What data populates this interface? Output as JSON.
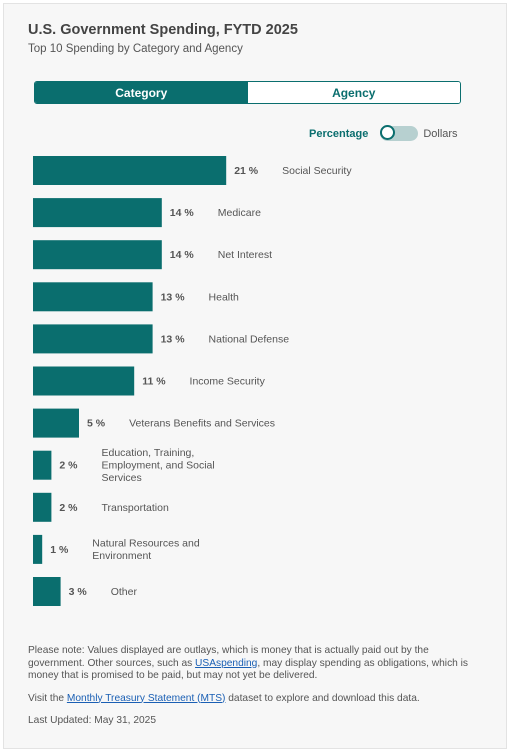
{
  "header": {
    "title": "U.S. Government Spending, FYTD 2025",
    "subtitle": "Top 10 Spending by Category and Agency"
  },
  "tabs": [
    {
      "label": "Category",
      "active": true
    },
    {
      "label": "Agency",
      "active": false
    }
  ],
  "unit_toggle": {
    "left_label": "Percentage",
    "right_label": "Dollars",
    "selected": "Percentage"
  },
  "colors": {
    "accent": "#0a6e6e",
    "bar": "#0a6e6e",
    "link": "#1a5fb4"
  },
  "chart_data": {
    "type": "bar",
    "orientation": "horizontal",
    "categories": [
      "Social Security",
      "Medicare",
      "Net Interest",
      "Health",
      "National Defense",
      "Income Security",
      "Veterans Benefits and Services",
      "Education, Training, Employment, and Social Services",
      "Transportation",
      "Natural Resources and Environment",
      "Other"
    ],
    "values": [
      21,
      14,
      14,
      13,
      13,
      11,
      5,
      2,
      2,
      1,
      3
    ],
    "value_labels": [
      "21 %",
      "14 %",
      "14 %",
      "13 %",
      "13 %",
      "11 %",
      "5 %",
      "2 %",
      "2 %",
      "1 %",
      "3 %"
    ],
    "title": "",
    "xlabel": "",
    "ylabel": ""
  },
  "notes": {
    "note1_before": "Please note: Values displayed are outlays, which is money that is actually paid out by the government. Other sources, such as ",
    "note1_link": "USAspending",
    "note1_after": ", may display spending as obligations, which is money that is promised to be paid, but may not yet be delivered.",
    "note2_before": "Visit the ",
    "note2_link": "Monthly Treasury Statement (MTS)",
    "note2_after": " dataset to explore and download this data.",
    "updated": "Last Updated: May 31, 2025"
  }
}
